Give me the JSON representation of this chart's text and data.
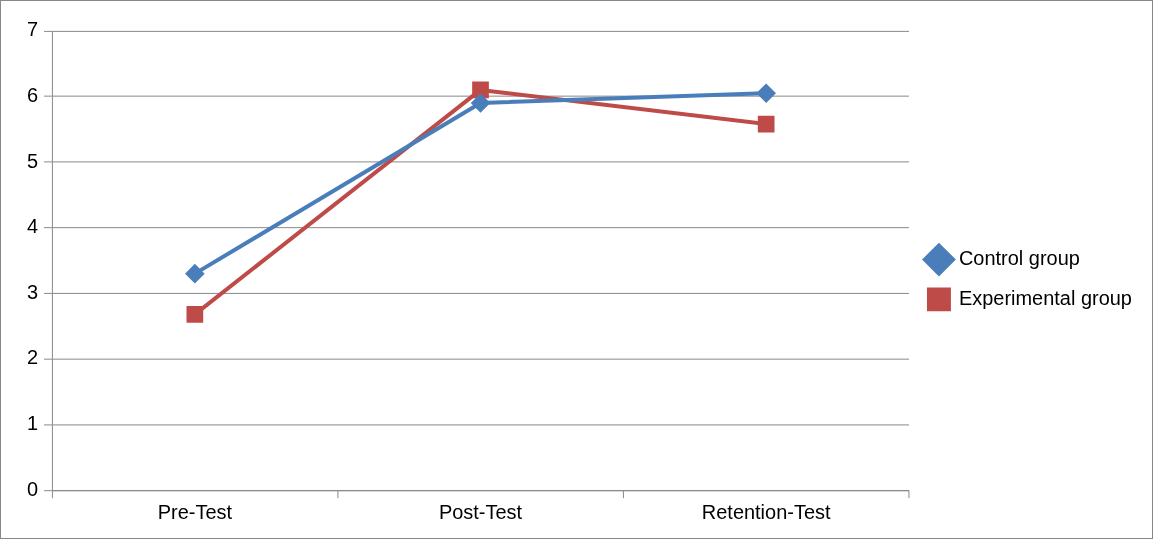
{
  "chart_data": {
    "type": "line",
    "categories": [
      "Pre-Test",
      "Post-Test",
      "Retention-Test"
    ],
    "series": [
      {
        "name": "Control group",
        "color": "#4a7ebb",
        "marker": "diamond",
        "values": [
          3.3,
          5.9,
          6.05
        ]
      },
      {
        "name": "Experimental group",
        "color": "#be4b48",
        "marker": "square",
        "values": [
          2.68,
          6.1,
          5.58
        ]
      }
    ],
    "ylim": [
      0,
      7
    ],
    "yticks": [
      0,
      1,
      2,
      3,
      4,
      5,
      6,
      7
    ],
    "grid": "y",
    "legend": "right"
  }
}
